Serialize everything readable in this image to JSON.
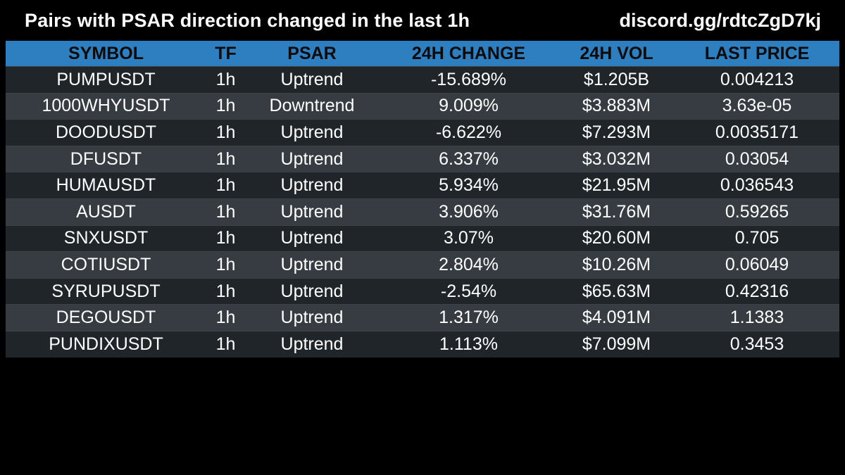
{
  "header": {
    "title": "Pairs with PSAR direction changed in the last 1h",
    "discord": "discord.gg/rdtcZgD7kj"
  },
  "table": {
    "columns": [
      "SYMBOL",
      "TF",
      "PSAR",
      "24H CHANGE",
      "24H VOL",
      "LAST PRICE"
    ],
    "rows": [
      [
        "PUMPUSDT",
        "1h",
        "Uptrend",
        "-15.689%",
        "$1.205B",
        "0.004213"
      ],
      [
        "1000WHYUSDT",
        "1h",
        "Downtrend",
        "9.009%",
        "$3.883M",
        "3.63e-05"
      ],
      [
        "DOODUSDT",
        "1h",
        "Uptrend",
        "-6.622%",
        "$7.293M",
        "0.0035171"
      ],
      [
        "DFUSDT",
        "1h",
        "Uptrend",
        "6.337%",
        "$3.032M",
        "0.03054"
      ],
      [
        "HUMAUSDT",
        "1h",
        "Uptrend",
        "5.934%",
        "$21.95M",
        "0.036543"
      ],
      [
        "AUSDT",
        "1h",
        "Uptrend",
        "3.906%",
        "$31.76M",
        "0.59265"
      ],
      [
        "SNXUSDT",
        "1h",
        "Uptrend",
        "3.07%",
        "$20.60M",
        "0.705"
      ],
      [
        "COTIUSDT",
        "1h",
        "Uptrend",
        "2.804%",
        "$10.26M",
        "0.06049"
      ],
      [
        "SYRUPUSDT",
        "1h",
        "Uptrend",
        "-2.54%",
        "$65.63M",
        "0.42316"
      ],
      [
        "DEGOUSDT",
        "1h",
        "Uptrend",
        "1.317%",
        "$4.091M",
        "1.1383"
      ],
      [
        "PUNDIXUSDT",
        "1h",
        "Uptrend",
        "1.113%",
        "$7.099M",
        "0.3453"
      ]
    ]
  },
  "colors": {
    "background": "#000000",
    "header_row": "#2e7fc0",
    "row_dark": "#1f2529",
    "row_light": "#363c41",
    "text": "#ffffff"
  }
}
